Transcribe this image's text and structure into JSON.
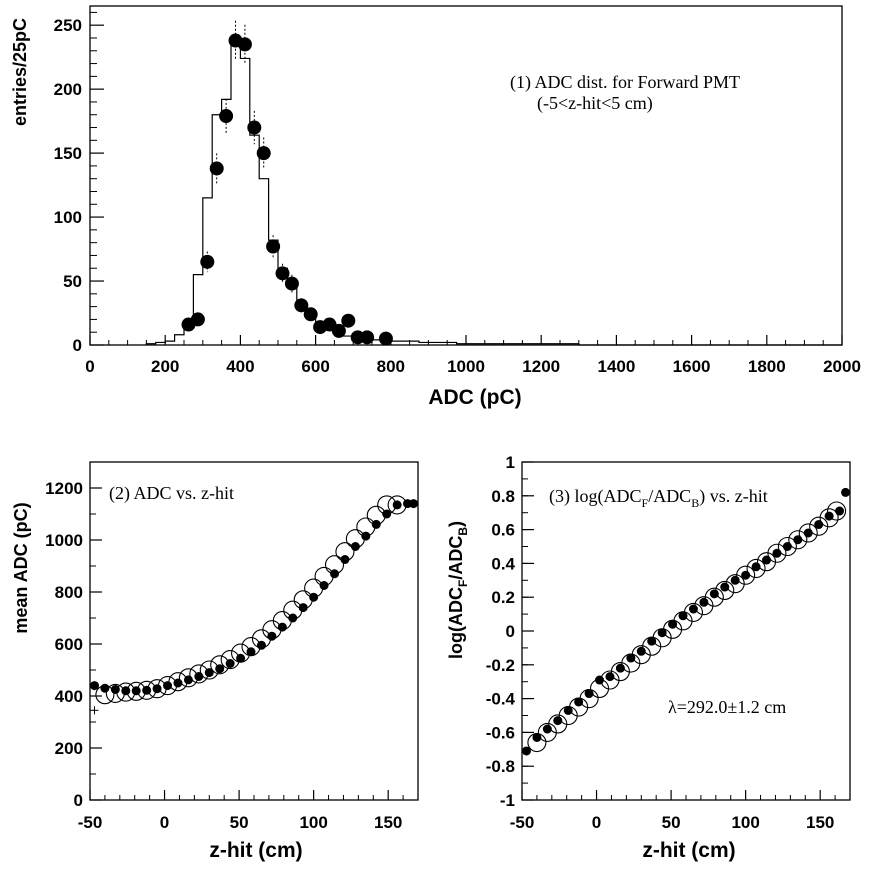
{
  "chart_data": [
    {
      "type": "histogram+scatter",
      "xlabel": "ADC (pC)",
      "ylabel": "entries/25pC",
      "xlim": [
        0,
        2000
      ],
      "ylim": [
        0,
        265
      ],
      "xticks": [
        "0",
        "200",
        "400",
        "600",
        "800",
        "1000",
        "1200",
        "1400",
        "1600",
        "1800",
        "2000"
      ],
      "yticks": [
        "0",
        "50",
        "100",
        "150",
        "200",
        "250"
      ],
      "annotation_line1": "(1) ADC dist. for Forward PMT",
      "annotation_line2": "(-5<z-hit<5 cm)",
      "histogram": {
        "bin_width": 25,
        "edges_start": 150,
        "counts": [
          1,
          2,
          3,
          8,
          16,
          55,
          115,
          180,
          192,
          238,
          224,
          164,
          130,
          82,
          60,
          45,
          34,
          25,
          17,
          13,
          10,
          7,
          6,
          5,
          4,
          4,
          3,
          3,
          3,
          2,
          2,
          2,
          2,
          1,
          1,
          1,
          1,
          1,
          1,
          1,
          1,
          1,
          1,
          1,
          1,
          1
        ]
      },
      "points": {
        "x": [
          262,
          287,
          312,
          337,
          362,
          387,
          412,
          437,
          462,
          487,
          512,
          537,
          562,
          587,
          612,
          637,
          662,
          687,
          712,
          737,
          787
        ],
        "y": [
          16,
          20,
          65,
          138,
          179,
          238,
          235,
          170,
          150,
          77,
          56,
          48,
          31,
          24,
          14,
          16,
          11,
          19,
          6,
          6,
          5
        ]
      }
    },
    {
      "type": "scatter",
      "xlabel": "z-hit (cm)",
      "ylabel": "mean ADC (pC)",
      "xlim": [
        -50,
        170
      ],
      "ylim": [
        0,
        1300
      ],
      "xticks": [
        "-50",
        "0",
        "50",
        "100",
        "150"
      ],
      "yticks": [
        "0",
        "200",
        "400",
        "600",
        "800",
        "1000",
        "1200"
      ],
      "annotation": "(2) ADC vs. z-hit",
      "series": [
        {
          "marker": "filled",
          "x": [
            -47,
            -40,
            -33,
            -26,
            -19,
            -12,
            -5,
            2,
            9,
            16,
            23,
            30,
            37,
            44,
            51,
            58,
            65,
            72,
            79,
            86,
            93,
            100,
            107,
            114,
            121,
            128,
            135,
            142,
            149,
            156,
            163,
            167
          ],
          "y": [
            440,
            430,
            425,
            420,
            420,
            422,
            428,
            440,
            450,
            462,
            475,
            490,
            505,
            525,
            545,
            570,
            595,
            630,
            665,
            700,
            740,
            780,
            825,
            870,
            925,
            975,
            1015,
            1060,
            1100,
            1135,
            1140,
            1140
          ]
        },
        {
          "marker": "open",
          "x": [
            -40,
            -33,
            -26,
            -19,
            -12,
            -5,
            2,
            9,
            16,
            23,
            30,
            37,
            44,
            51,
            58,
            65,
            72,
            79,
            86,
            93,
            100,
            107,
            114,
            121,
            128,
            135,
            142,
            149,
            156
          ],
          "y": [
            405,
            410,
            415,
            418,
            422,
            428,
            440,
            455,
            470,
            485,
            500,
            520,
            540,
            565,
            590,
            620,
            655,
            690,
            730,
            770,
            815,
            860,
            905,
            955,
            1005,
            1050,
            1095,
            1135,
            1135
          ]
        },
        {
          "marker": "cross",
          "x": [
            -47
          ],
          "y": [
            345
          ]
        }
      ]
    },
    {
      "type": "scatter",
      "xlabel": "z-hit (cm)",
      "ylabel_main": "log(ADC",
      "ylabel_sub1": "F",
      "ylabel_mid": "/ADC",
      "ylabel_sub2": "B",
      "ylabel_end": ")",
      "xlim": [
        -50,
        170
      ],
      "ylim": [
        -1,
        1
      ],
      "xticks": [
        "-50",
        "0",
        "50",
        "100",
        "150"
      ],
      "yticks": [
        "-1",
        "-0.8",
        "-0.6",
        "-0.4",
        "-0.2",
        "0",
        "0.2",
        "0.4",
        "0.6",
        "0.8",
        "1"
      ],
      "annotation_main": "(3) log(ADC",
      "annotation_sub1": "F",
      "annotation_mid": "/ADC",
      "annotation_sub2": "B",
      "annotation_end": ") vs. z-hit",
      "lambda_label": "λ=292.0±1.2 cm",
      "series": [
        {
          "marker": "filled",
          "x": [
            -47,
            -40,
            -33,
            -26,
            -19,
            -12,
            -5,
            2,
            9,
            16,
            23,
            30,
            37,
            44,
            51,
            58,
            65,
            72,
            79,
            86,
            93,
            100,
            107,
            114,
            121,
            128,
            135,
            142,
            149,
            156,
            163,
            167
          ],
          "y": [
            -0.71,
            -0.63,
            -0.58,
            -0.53,
            -0.47,
            -0.42,
            -0.37,
            -0.29,
            -0.27,
            -0.22,
            -0.16,
            -0.12,
            -0.06,
            -0.01,
            0.04,
            0.09,
            0.13,
            0.17,
            0.22,
            0.26,
            0.3,
            0.33,
            0.38,
            0.42,
            0.46,
            0.5,
            0.54,
            0.58,
            0.63,
            0.68,
            0.71,
            0.82
          ]
        },
        {
          "marker": "open",
          "x": [
            -40,
            -33,
            -26,
            -19,
            -12,
            -5,
            2,
            9,
            16,
            23,
            30,
            37,
            44,
            51,
            58,
            65,
            72,
            79,
            86,
            93,
            100,
            107,
            114,
            121,
            128,
            135,
            142,
            149,
            156,
            161
          ],
          "y": [
            -0.66,
            -0.6,
            -0.55,
            -0.5,
            -0.45,
            -0.4,
            -0.34,
            -0.29,
            -0.24,
            -0.19,
            -0.14,
            -0.09,
            -0.04,
            0.01,
            0.06,
            0.11,
            0.15,
            0.2,
            0.24,
            0.28,
            0.33,
            0.37,
            0.41,
            0.46,
            0.5,
            0.54,
            0.58,
            0.62,
            0.67,
            0.71
          ]
        }
      ]
    }
  ]
}
